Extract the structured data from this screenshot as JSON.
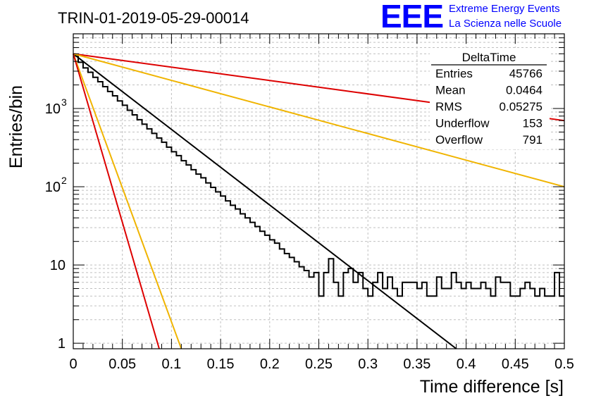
{
  "chart_data": {
    "type": "line",
    "title": "TRIN-01-2019-05-29-00014",
    "xlabel": "Time difference [s]",
    "ylabel": "Entries/bin",
    "xlim": [
      0,
      0.5
    ],
    "ylim": [
      0.85,
      9000
    ],
    "y_scale": "log",
    "grid": true,
    "x_ticks": [
      "0",
      "0.05",
      "0.1",
      "0.15",
      "0.2",
      "0.25",
      "0.3",
      "0.35",
      "0.4",
      "0.45",
      "0.5"
    ],
    "y_ticks": [
      {
        "value": 1,
        "label": "1"
      },
      {
        "value": 10,
        "label": "10"
      },
      {
        "value": 100,
        "label": "10",
        "exp": "2"
      },
      {
        "value": 1000,
        "label": "10",
        "exp": "3"
      }
    ],
    "histogram": {
      "bin_width": 0.005,
      "values": [
        4700,
        3900,
        3300,
        2900,
        2500,
        2200,
        1900,
        1650,
        1450,
        1250,
        1100,
        950,
        830,
        720,
        630,
        550,
        480,
        420,
        370,
        320,
        280,
        250,
        215,
        190,
        165,
        145,
        130,
        112,
        98,
        86,
        76,
        66,
        58,
        52,
        45,
        40,
        35,
        31,
        27,
        24,
        21,
        19,
        16,
        14,
        12.5,
        11,
        9.5,
        8.5,
        7,
        8,
        4,
        8,
        12,
        6,
        4,
        8,
        9,
        6,
        8,
        5,
        4,
        6,
        8,
        5,
        7,
        5,
        4,
        6,
        6,
        6,
        5,
        6,
        4,
        4,
        7,
        5,
        5,
        8,
        6,
        5,
        6,
        5,
        5,
        6,
        5,
        4,
        7,
        6,
        6,
        4,
        4,
        5,
        6,
        5,
        4,
        5,
        4,
        4,
        8,
        4
      ],
      "color": "#000000"
    },
    "lines": [
      {
        "points": [
          [
            0,
            5000
          ],
          [
            0.39,
            0.85
          ]
        ],
        "color": "#000000"
      },
      {
        "points": [
          [
            0,
            5000
          ],
          [
            0.5,
            700
          ]
        ],
        "color": "#dd0000"
      },
      {
        "points": [
          [
            0,
            5000
          ],
          [
            0.5,
            100
          ]
        ],
        "color": "#f0b400"
      },
      {
        "points": [
          [
            0,
            5000
          ],
          [
            0.11,
            0.85
          ]
        ],
        "color": "#f0b400"
      },
      {
        "points": [
          [
            0,
            5000
          ],
          [
            0.0875,
            0.85
          ]
        ],
        "color": "#dd0000"
      }
    ],
    "stats_box": {
      "title": "DeltaTime",
      "rows": [
        {
          "label": "Entries",
          "value": "45766"
        },
        {
          "label": "Mean",
          "value": "0.0464"
        },
        {
          "label": "RMS",
          "value": "0.05275"
        },
        {
          "label": "Underflow",
          "value": "153"
        },
        {
          "label": "Overflow",
          "value": "791"
        }
      ]
    }
  },
  "logo": {
    "mark": "EEE",
    "line1": "Extreme Energy Events",
    "line2": "La Scienza nelle Scuole"
  }
}
